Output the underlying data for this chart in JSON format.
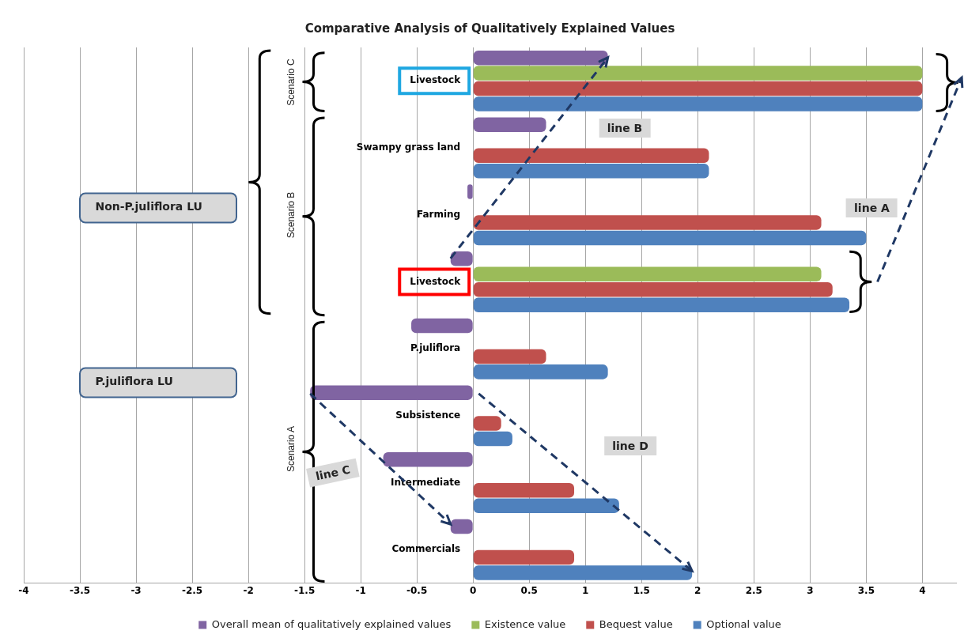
{
  "chart_data": {
    "type": "bar",
    "orientation": "horizontal",
    "title": "Comparative Analysis of Qualitatively Explained Values",
    "categories": [
      "Livestock",
      "Swampy grass land",
      "Farming",
      "Livestock",
      "P.juliflora",
      "Subsistence",
      "Intermediate",
      "Commercials"
    ],
    "series": [
      {
        "name": "Overall mean of qualitatively explained values",
        "color": "#8064a2",
        "values": [
          1.2,
          0.65,
          -0.05,
          -0.2,
          -0.55,
          -1.45,
          -0.8,
          -0.2
        ]
      },
      {
        "name": "Existence value",
        "color": "#9bbb59",
        "values": [
          4.0,
          0,
          0,
          3.1,
          0,
          0,
          0,
          0
        ]
      },
      {
        "name": "Bequest value",
        "color": "#c0504d",
        "values": [
          4.0,
          2.1,
          3.1,
          3.2,
          0.65,
          0.25,
          0.9,
          0.9
        ]
      },
      {
        "name": "Optional value",
        "color": "#4f81bd",
        "values": [
          4.0,
          2.1,
          3.5,
          3.35,
          1.2,
          0.35,
          1.3,
          1.95
        ]
      }
    ],
    "xlim": [
      -4,
      4.3
    ],
    "xticks": [
      -4,
      -3.5,
      -3,
      -2.5,
      -2,
      -1.5,
      -1,
      -0.5,
      0,
      0.5,
      1,
      1.5,
      2,
      2.5,
      3,
      3.5,
      4
    ],
    "grid": "x",
    "legend": "bottom",
    "annotations": [
      "Scenario C",
      "Scenario B",
      "Scenario A",
      "Non-P.juliflora LU",
      "P.juliflora LU",
      "line A",
      "line B",
      "line C",
      "line D"
    ]
  }
}
